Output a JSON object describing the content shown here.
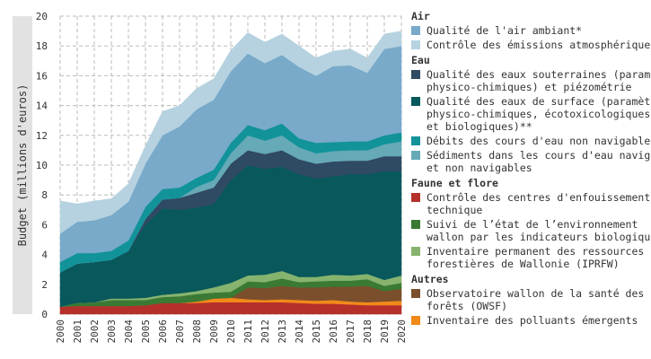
{
  "chart_data": {
    "type": "area",
    "stacked": true,
    "title": "",
    "xlabel": "",
    "ylabel": "Budget (millions d'euros)",
    "ylim": [
      0,
      20
    ],
    "yticks": [
      0,
      2,
      4,
      6,
      8,
      10,
      12,
      14,
      16,
      18,
      20
    ],
    "grid": true,
    "legend_position": "right",
    "x": [
      "2000",
      "2001",
      "2002",
      "2003",
      "2004",
      "2005",
      "2006",
      "2007",
      "2008",
      "2009",
      "2010",
      "2011",
      "2012",
      "2013",
      "2014",
      "2015",
      "2016",
      "2017",
      "2018",
      "2019",
      "2020"
    ],
    "series": [
      {
        "name": "Contrôle des centres d'enfouissement\ntechnique",
        "group": "Faune et flore",
        "color": "#b5302b",
        "values": [
          0.5,
          0.55,
          0.55,
          0.55,
          0.55,
          0.6,
          0.75,
          0.75,
          0.75,
          0.8,
          0.8,
          0.8,
          0.8,
          0.8,
          0.75,
          0.7,
          0.7,
          0.65,
          0.6,
          0.6,
          0.6
        ]
      },
      {
        "name": "Inventaire des polluants émergents",
        "group": "Autres",
        "color": "#f28a1a",
        "values": [
          0,
          0,
          0,
          0,
          0,
          0,
          0,
          0,
          0.1,
          0.25,
          0.3,
          0.2,
          0.15,
          0.2,
          0.2,
          0.2,
          0.25,
          0.2,
          0.2,
          0.25,
          0.3
        ]
      },
      {
        "name": "Observatoire wallon de la santé des\nforêts (OWSF)",
        "group": "Autres",
        "color": "#7b4f2c",
        "values": [
          0,
          0,
          0,
          0,
          0,
          0,
          0,
          0,
          0,
          0,
          0,
          0.8,
          0.8,
          0.9,
          0.85,
          0.9,
          0.9,
          1.0,
          1.1,
          0.7,
          0.8
        ]
      },
      {
        "name": "Suivi de l’état de l’environnement\nwallon par les indicateurs biologiques",
        "group": "Faune et flore",
        "color": "#3a7a34",
        "values": [
          0,
          0.2,
          0.25,
          0.4,
          0.4,
          0.35,
          0.4,
          0.45,
          0.5,
          0.4,
          0.4,
          0.4,
          0.4,
          0.5,
          0.35,
          0.4,
          0.4,
          0.4,
          0.45,
          0.35,
          0.4
        ]
      },
      {
        "name": "Inventaire permanent des ressources\nforestières de Wallonie (IPRFW)",
        "group": "Faune et flore",
        "color": "#86b36e",
        "values": [
          0,
          0,
          0,
          0.1,
          0.1,
          0.15,
          0.15,
          0.2,
          0.2,
          0.35,
          0.6,
          0.4,
          0.5,
          0.5,
          0.35,
          0.3,
          0.4,
          0.35,
          0.35,
          0.4,
          0.5
        ]
      },
      {
        "name": "Qualité des eaux de surface (paramètres\nphysico-chimiques, écotoxicologiques\net biologiques)**",
        "group": "Eau",
        "color": "#08585c",
        "values": [
          2.3,
          2.65,
          2.7,
          2.6,
          3.2,
          4.9,
          5.8,
          5.6,
          5.6,
          5.6,
          6.9,
          7.4,
          7.1,
          7.0,
          6.9,
          6.6,
          6.6,
          6.8,
          6.7,
          7.3,
          7.0
        ]
      },
      {
        "name": "Qualité des eaux souterraines (paramètres\nphysico-chimiques) et piézométrie",
        "group": "Eau",
        "color": "#2f4a63",
        "values": [
          0,
          0,
          0,
          0,
          0,
          0.4,
          0.6,
          0.8,
          1.0,
          1.1,
          1.1,
          1.0,
          1.0,
          1.1,
          1.0,
          1.0,
          1.0,
          0.9,
          0.9,
          1.0,
          1.0
        ]
      },
      {
        "name": "Sédiments dans les cours d'eau navigables\net non navigables",
        "group": "Eau",
        "color": "#66a9b7",
        "values": [
          0,
          0,
          0,
          0,
          0,
          0,
          0,
          0,
          0.4,
          0.5,
          0.7,
          1.0,
          0.9,
          1.0,
          0.8,
          0.7,
          0.7,
          0.7,
          0.7,
          0.8,
          1.0
        ]
      },
      {
        "name": "Débits des cours d'eau non navigables",
        "group": "Eau",
        "color": "#12939a",
        "values": [
          0.7,
          0.7,
          0.6,
          0.6,
          0.7,
          0.8,
          0.7,
          0.7,
          0.6,
          0.7,
          0.7,
          0.7,
          0.7,
          0.8,
          0.6,
          0.7,
          0.6,
          0.6,
          0.6,
          0.6,
          0.6
        ]
      },
      {
        "name": "Qualité de l'air ambiant*",
        "group": "Air",
        "color": "#79aac9",
        "values": [
          1.9,
          2.1,
          2.2,
          2.4,
          2.6,
          2.9,
          3.6,
          4.1,
          4.6,
          4.7,
          4.8,
          4.8,
          4.5,
          4.6,
          4.8,
          4.5,
          5.1,
          5.1,
          4.6,
          5.8,
          5.8
        ]
      },
      {
        "name": "Contrôle des émissions atmosphériques",
        "group": "Air",
        "color": "#b6d2e0",
        "values": [
          2.2,
          1.2,
          1.3,
          1.1,
          1.2,
          1.2,
          1.6,
          1.4,
          1.4,
          1.4,
          1.4,
          1.4,
          1.4,
          1.4,
          1.4,
          1.2,
          1.0,
          1.1,
          1.0,
          1.0,
          1.0
        ]
      }
    ]
  },
  "legend": {
    "groups": [
      {
        "title": "Air",
        "items": [
          {
            "label": "Qualité de l'air ambiant*",
            "color": "#79aac9"
          },
          {
            "label": "Contrôle des émissions atmosphériques",
            "color": "#b6d2e0"
          }
        ]
      },
      {
        "title": "Eau",
        "items": [
          {
            "label": "Qualité des eaux souterraines (paramètres\nphysico-chimiques) et piézométrie",
            "color": "#2f4a63"
          },
          {
            "label": "Qualité des eaux de surface (paramètres\nphysico-chimiques, écotoxicologiques\net biologiques)**",
            "color": "#08585c"
          },
          {
            "label": "Débits des cours d'eau non navigables",
            "color": "#12939a"
          },
          {
            "label": "Sédiments dans les cours d'eau navigables\net non navigables",
            "color": "#66a9b7"
          }
        ]
      },
      {
        "title": "Faune et flore",
        "items": [
          {
            "label": "Contrôle des centres d'enfouissement\ntechnique",
            "color": "#b5302b"
          },
          {
            "label": "Suivi de l’état de l’environnement\nwallon par les indicateurs biologiques",
            "color": "#3a7a34"
          },
          {
            "label": "Inventaire permanent des ressources\nforestières de Wallonie (IPRFW)",
            "color": "#86b36e"
          }
        ]
      },
      {
        "title": "Autres",
        "items": [
          {
            "label": "Observatoire wallon de la santé des\nforêts (OWSF)",
            "color": "#7b4f2c"
          },
          {
            "label": "Inventaire des polluants émergents",
            "color": "#f28a1a"
          }
        ]
      }
    ]
  }
}
